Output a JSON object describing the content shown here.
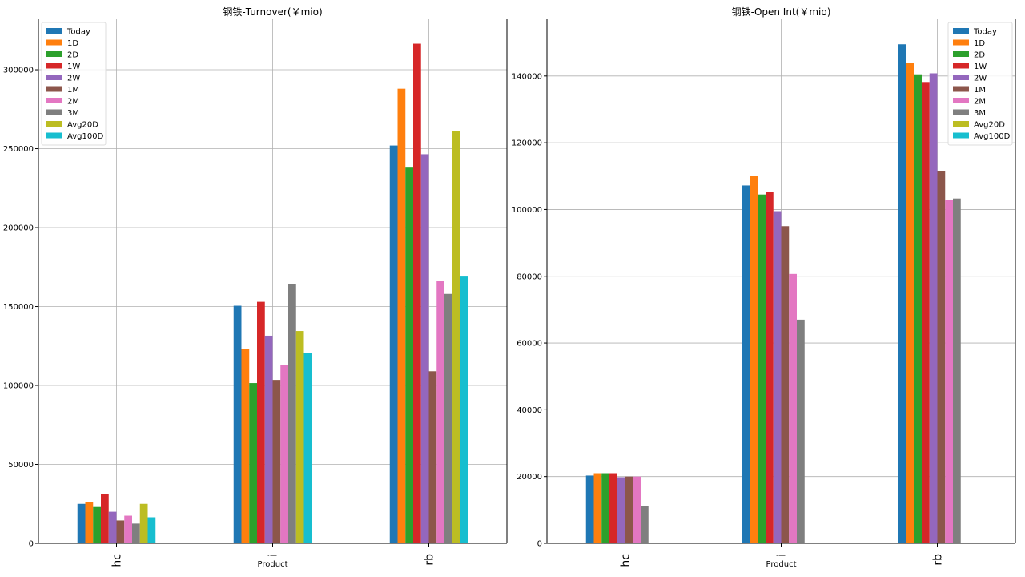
{
  "chart_data": [
    {
      "type": "bar",
      "title": "钢铁-Turnover(￥mio)",
      "xlabel": "Product",
      "ylabel": "",
      "ylim": [
        0,
        332000
      ],
      "yticks": [
        0,
        50000,
        100000,
        150000,
        200000,
        250000,
        300000
      ],
      "grid": true,
      "legend_position": "top-left",
      "categories": [
        "hc",
        "i",
        "rb"
      ],
      "series": [
        {
          "name": "Today",
          "color": "#1f77b4",
          "values": [
            25000,
            150500,
            252000
          ]
        },
        {
          "name": "1D",
          "color": "#ff7f0e",
          "values": [
            26000,
            123000,
            288000
          ]
        },
        {
          "name": "2D",
          "color": "#2ca02c",
          "values": [
            23000,
            101500,
            238000
          ]
        },
        {
          "name": "1W",
          "color": "#d62728",
          "values": [
            31000,
            153000,
            316500
          ]
        },
        {
          "name": "2W",
          "color": "#9467bd",
          "values": [
            20000,
            131500,
            246500
          ]
        },
        {
          "name": "1M",
          "color": "#8c564b",
          "values": [
            14500,
            103500,
            109000
          ]
        },
        {
          "name": "2M",
          "color": "#e377c2",
          "values": [
            17500,
            113000,
            166000
          ]
        },
        {
          "name": "3M",
          "color": "#7f7f7f",
          "values": [
            12500,
            164000,
            158000
          ]
        },
        {
          "name": "Avg20D",
          "color": "#bcbd22",
          "values": [
            25000,
            134500,
            261000
          ]
        },
        {
          "name": "Avg100D",
          "color": "#17becf",
          "values": [
            16500,
            120500,
            169000
          ]
        }
      ]
    },
    {
      "type": "bar",
      "title": "钢铁-Open Int(￥mio)",
      "xlabel": "Product",
      "ylabel": "",
      "ylim": [
        0,
        157000
      ],
      "yticks": [
        0,
        20000,
        40000,
        60000,
        80000,
        100000,
        120000,
        140000
      ],
      "grid": true,
      "legend_position": "top-right",
      "categories": [
        "hc",
        "i",
        "rb"
      ],
      "series": [
        {
          "name": "Today",
          "color": "#1f77b4",
          "values": [
            20300,
            107200,
            149500
          ]
        },
        {
          "name": "1D",
          "color": "#ff7f0e",
          "values": [
            21000,
            110000,
            144000
          ]
        },
        {
          "name": "2D",
          "color": "#2ca02c",
          "values": [
            21000,
            104500,
            140500
          ]
        },
        {
          "name": "1W",
          "color": "#d62728",
          "values": [
            21000,
            105300,
            138200
          ]
        },
        {
          "name": "2W",
          "color": "#9467bd",
          "values": [
            19800,
            99500,
            140800
          ]
        },
        {
          "name": "1M",
          "color": "#8c564b",
          "values": [
            20000,
            95000,
            111500
          ]
        },
        {
          "name": "2M",
          "color": "#e377c2",
          "values": [
            20000,
            80700,
            102900
          ]
        },
        {
          "name": "3M",
          "color": "#7f7f7f",
          "values": [
            11200,
            67000,
            103300
          ]
        },
        {
          "name": "Avg20D",
          "color": "#bcbd22",
          "values": [
            null,
            null,
            null
          ]
        },
        {
          "name": "Avg100D",
          "color": "#17becf",
          "values": [
            null,
            null,
            null
          ]
        }
      ]
    }
  ]
}
